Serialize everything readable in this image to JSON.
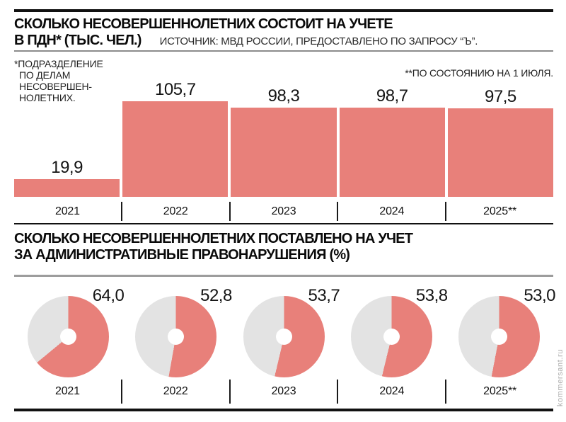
{
  "colors": {
    "accent": "#e8807a",
    "track": "#e3e3e3"
  },
  "watermark": "kommersant.ru",
  "chart_data": [
    {
      "type": "bar",
      "title_line1": "СКОЛЬКО НЕСОВЕРШЕННОЛЕТНИХ СОСТОИТ НА УЧЕТЕ",
      "title_line2": "В ПДН* (ТЫС. ЧЕЛ.)",
      "source": "ИСТОЧНИК: МВД РОССИИ, ПРЕДОСТАВЛЕНО ПО ЗАПРОСУ “Ъ”.",
      "footnote_left_lines": [
        "*ПОДРАЗДЕЛЕНИЕ",
        "ПО ДЕЛАМ",
        "НЕСОВЕРШЕН-",
        "НОЛЕТНИХ."
      ],
      "footnote_right": "**ПО СОСТОЯНИЮ НА 1 ИЮЛЯ.",
      "categories": [
        "2021",
        "2022",
        "2023",
        "2024",
        "2025**"
      ],
      "values": [
        19.9,
        105.7,
        98.3,
        98.7,
        97.5
      ],
      "value_labels": [
        "19,9",
        "105,7",
        "98,3",
        "98,7",
        "97,5"
      ],
      "ylabel": "тыс. чел.",
      "ylim": [
        0,
        105.7
      ],
      "legend": "none",
      "grid": false
    },
    {
      "type": "pie",
      "subtype": "donut",
      "title_line1": "СКОЛЬКО НЕСОВЕРШЕННОЛЕТНИХ ПОСТАВЛЕНО НА УЧЕТ",
      "title_line2": "ЗА АДМИНИСТРАТИВНЫЕ ПРАВОНАРУШЕНИЯ (%)",
      "categories": [
        "2021",
        "2022",
        "2023",
        "2024",
        "2025**"
      ],
      "values": [
        64.0,
        52.8,
        53.7,
        53.8,
        53.0
      ],
      "value_labels": [
        "64,0",
        "52,8",
        "53,7",
        "53,8",
        "53,0"
      ],
      "unit": "%",
      "legend": "none"
    }
  ]
}
